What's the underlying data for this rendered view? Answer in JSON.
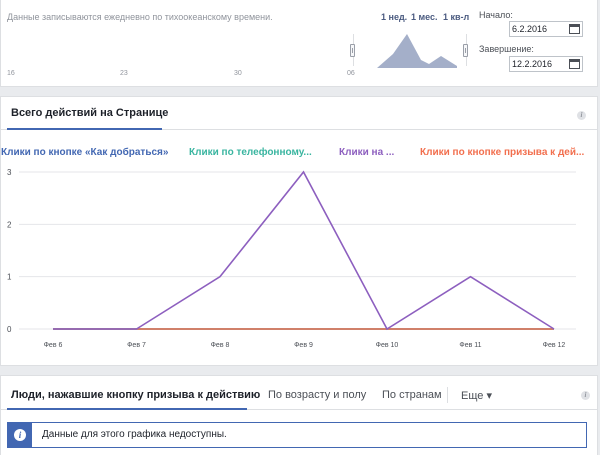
{
  "timeline": {
    "note": "Данные записываются ежедневно по тихоокеанскому времени.",
    "axis_labels": [
      "16",
      "23",
      "30",
      "06"
    ],
    "range_links": [
      "1 нед.",
      "1 мес.",
      "1 кв-л"
    ]
  },
  "date_range": {
    "start_label": "Начало:",
    "start_value": "6.2.2016",
    "end_label": "Завершение:",
    "end_value": "12.2.2016"
  },
  "chart_section": {
    "tab_label": "Всего действий на Странице",
    "legend": [
      {
        "label": "Клики по кнопке «Как добраться»",
        "color": "#4267b2"
      },
      {
        "label": "Клики по телефонному...",
        "color": "#3ab5a0"
      },
      {
        "label": "Клики на ...",
        "color": "#8d5fbf"
      },
      {
        "label": "Клики по кнопке призыва к дей...",
        "color": "#f26f4e"
      }
    ]
  },
  "chart_data": {
    "type": "line",
    "x": [
      "Фев 6",
      "Фев 7",
      "Фев 8",
      "Фев 9",
      "Фев 10",
      "Фев 11",
      "Фев 12"
    ],
    "series": [
      {
        "name": "Клики по кнопке «Как добраться»",
        "color": "#4267b2",
        "values": [
          0,
          0,
          0,
          0,
          0,
          0,
          0
        ]
      },
      {
        "name": "Клики по телефонному...",
        "color": "#3ab5a0",
        "values": [
          0,
          0,
          0,
          0,
          0,
          0,
          0
        ]
      },
      {
        "name": "Клики по кнопке призыва к дей...",
        "color": "#f26f4e",
        "values": [
          0,
          0,
          0,
          0,
          0,
          0,
          0
        ]
      },
      {
        "name": "Клики на ...",
        "color": "#8d5fbf",
        "values": [
          0,
          0,
          1,
          3,
          0,
          1,
          0
        ]
      }
    ],
    "yticks": [
      0,
      1,
      2,
      3
    ],
    "ylim": [
      0,
      3
    ],
    "grid": true
  },
  "bottom_section": {
    "tabs": [
      "Люди, нажавшие кнопку призыва к действию",
      "По возрасту и полу",
      "По странам",
      "Еще ▾"
    ],
    "notice": "Данные для этого графика недоступны."
  }
}
